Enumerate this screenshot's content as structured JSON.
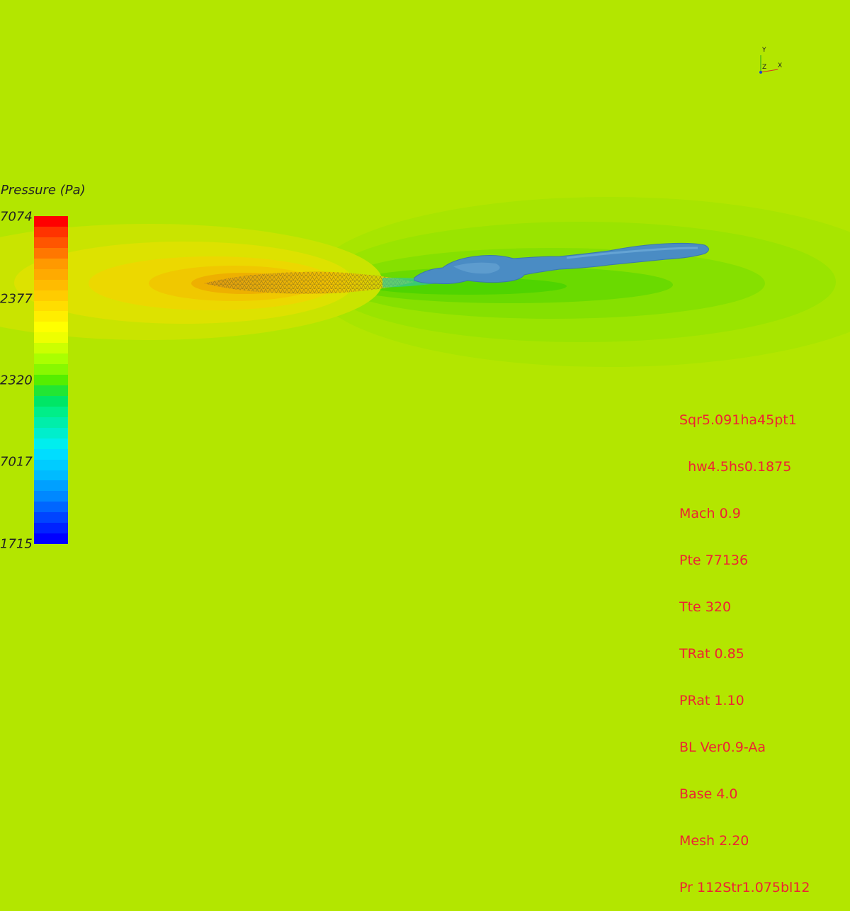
{
  "legend": {
    "title": "Pressure (Pa)",
    "ticks": [
      "7074",
      "2377",
      "2320",
      "7017",
      "1715"
    ],
    "colors": [
      "#ff0000",
      "#ff3300",
      "#ff5500",
      "#ff7700",
      "#ff9900",
      "#ffaa00",
      "#ffbb00",
      "#ffcc00",
      "#ffdd00",
      "#ffee00",
      "#ffff00",
      "#eeff00",
      "#ccff00",
      "#aaff00",
      "#88f800",
      "#55ee00",
      "#22e633",
      "#00e666",
      "#00ee88",
      "#00eeaa",
      "#00eecc",
      "#00eeee",
      "#00ddff",
      "#00ccff",
      "#00bbff",
      "#00a0ff",
      "#0088ff",
      "#0066ff",
      "#0044ff",
      "#0022ff",
      "#0000ff"
    ]
  },
  "axes": {
    "x": "X",
    "y": "Y",
    "z": "Z"
  },
  "parameters": [
    "Sqr5.091ha45pt1",
    "  hw4.5hs0.1875",
    "Mach 0.9",
    "Pte 77136",
    "Tte 320",
    "TRat 0.85",
    "PRat 1.10",
    "BL Ver0.9-Aa",
    "Base 4.0",
    "Mesh 2.20",
    "Pr 112Str1.075bl12"
  ]
}
